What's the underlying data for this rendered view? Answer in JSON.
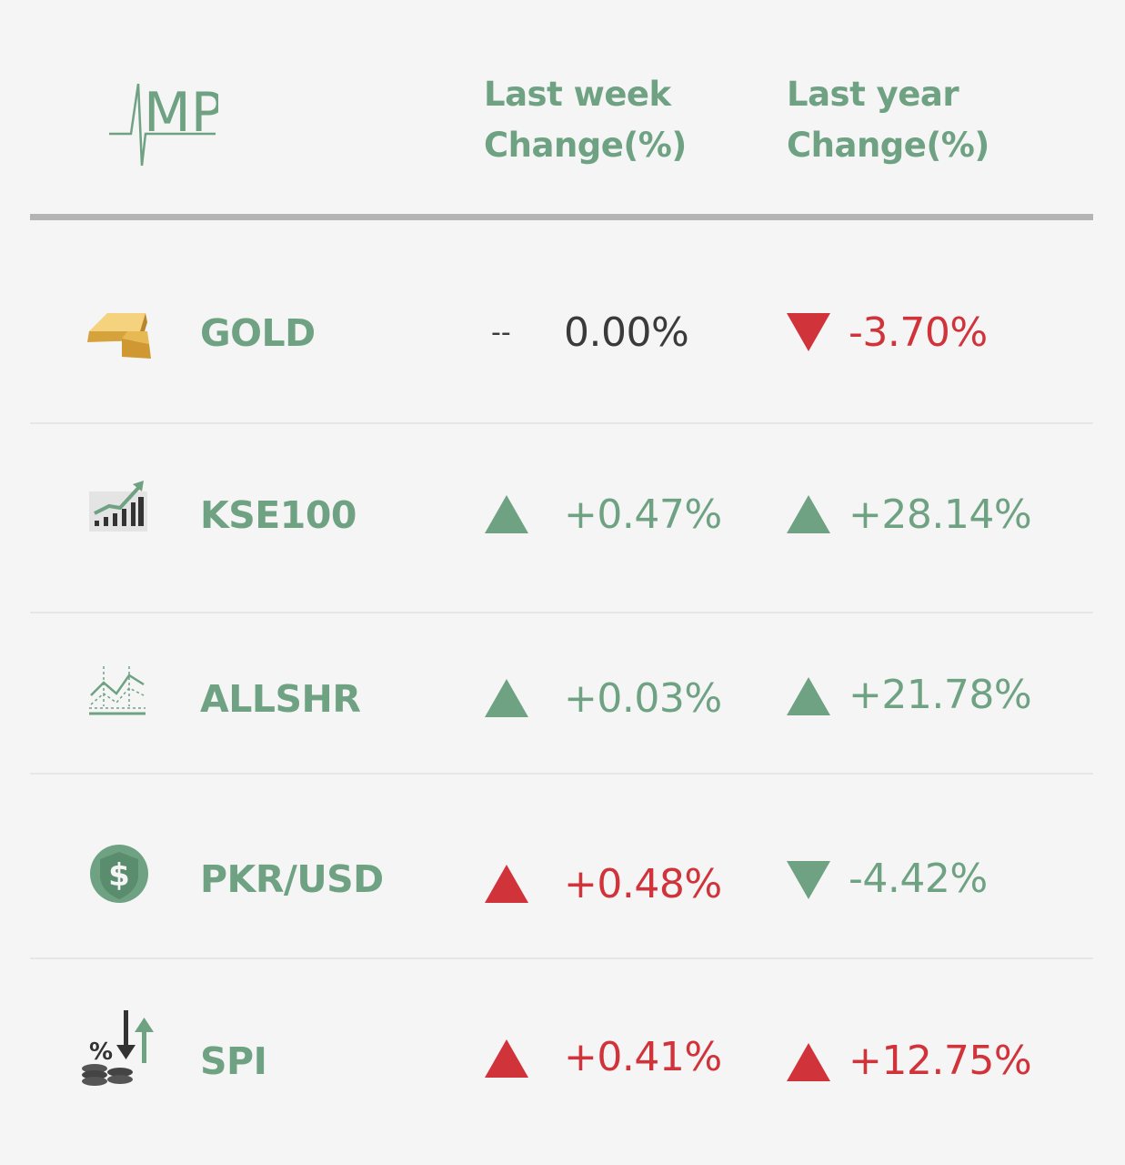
{
  "logo": {
    "text": "MP",
    "icon": "ekg-pulse-logo"
  },
  "header": {
    "week_line1": "Last week",
    "week_line2": "Change(%)",
    "year_line1": "Last year",
    "year_line2": "Change(%)"
  },
  "colors": {
    "green": "#6ea283",
    "red": "#d1333a",
    "dark": "#3a3a3a"
  },
  "rows": [
    {
      "name": "GOLD",
      "icon": "gold-bars-icon",
      "week": {
        "direction": "flat",
        "symbol": "--",
        "value": "0.00%"
      },
      "year": {
        "direction": "down",
        "color": "red",
        "value": "-3.70%"
      }
    },
    {
      "name": "KSE100",
      "icon": "bar-chart-growth-icon",
      "week": {
        "direction": "up",
        "color": "green",
        "value": "+0.47%"
      },
      "year": {
        "direction": "up",
        "color": "green",
        "value": "+28.14%"
      }
    },
    {
      "name": "ALLSHR",
      "icon": "line-chart-icon",
      "week": {
        "direction": "up",
        "color": "green",
        "value": "+0.03%"
      },
      "year": {
        "direction": "up",
        "color": "green",
        "value": "+21.78%"
      }
    },
    {
      "name": "PKR/USD",
      "icon": "dollar-coin-icon",
      "week": {
        "direction": "up",
        "color": "red",
        "value": "+0.48%"
      },
      "year": {
        "direction": "down",
        "color": "green",
        "value": "-4.42%"
      }
    },
    {
      "name": "SPI",
      "icon": "percent-coins-arrows-icon",
      "week": {
        "direction": "up",
        "color": "red",
        "value": "+0.41%"
      },
      "year": {
        "direction": "up",
        "color": "red",
        "value": "+12.75%"
      }
    }
  ]
}
